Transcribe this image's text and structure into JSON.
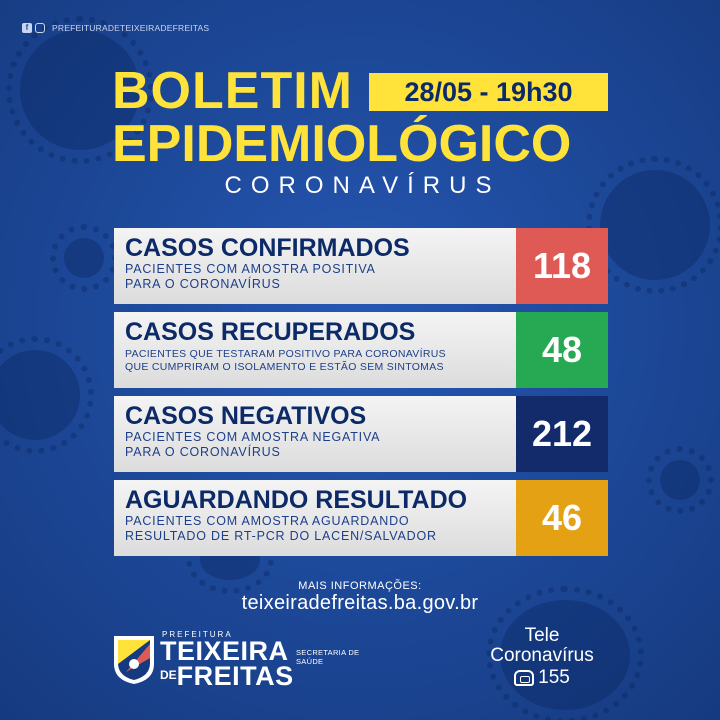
{
  "social": {
    "handle": "PREFEITURADETEIXEIRADEFREITAS",
    "icons": [
      "facebook-icon",
      "instagram-icon"
    ]
  },
  "header": {
    "title_line1": "BOLETIM",
    "title_line2": "EPIDEMIOLÓGICO",
    "date_time": "28/05 - 19h30",
    "subtitle": "CORONAVÍRUS"
  },
  "colors": {
    "background": "#1d4a9e",
    "title_yellow": "#ffe23a",
    "confirmed": "#e05a55",
    "recovered": "#27a852",
    "negative": "#132a6b",
    "awaiting": "#e4a114"
  },
  "cards": [
    {
      "title": "CASOS CONFIRMADOS",
      "description": "PACIENTES COM AMOSTRA POSITIVA\nPARA O CORONAVÍRUS",
      "value": "118"
    },
    {
      "title": "CASOS RECUPERADOS",
      "description": "PACIENTES QUE TESTARAM POSITIVO PARA CORONAVÍRUS\nQUE CUMPRIRAM O ISOLAMENTO E ESTÃO SEM SINTOMAS",
      "value": "48"
    },
    {
      "title": "CASOS NEGATIVOS",
      "description": "PACIENTES COM AMOSTRA NEGATIVA\nPARA O CORONAVÍRUS",
      "value": "212"
    },
    {
      "title": "AGUARDANDO RESULTADO",
      "description": "PACIENTES COM AMOSTRA AGUARDANDO\nRESULTADO DE RT-PCR DO LACEN/SALVADOR",
      "value": "46"
    }
  ],
  "footer": {
    "more_info_label": "MAIS INFORMAÇÕES:",
    "website": "teixeiradefreitas.ba.gov.br",
    "logo_prefix": "PREFEITURA",
    "logo_city_line1": "TEIXEIRA",
    "logo_city_de": "DE",
    "logo_city_line2": "FREITAS",
    "secretariat": "SECRETARIA DE SAÚDE",
    "tele_line1": "Tele",
    "tele_line2": "Coronavírus",
    "tele_number": "155"
  }
}
